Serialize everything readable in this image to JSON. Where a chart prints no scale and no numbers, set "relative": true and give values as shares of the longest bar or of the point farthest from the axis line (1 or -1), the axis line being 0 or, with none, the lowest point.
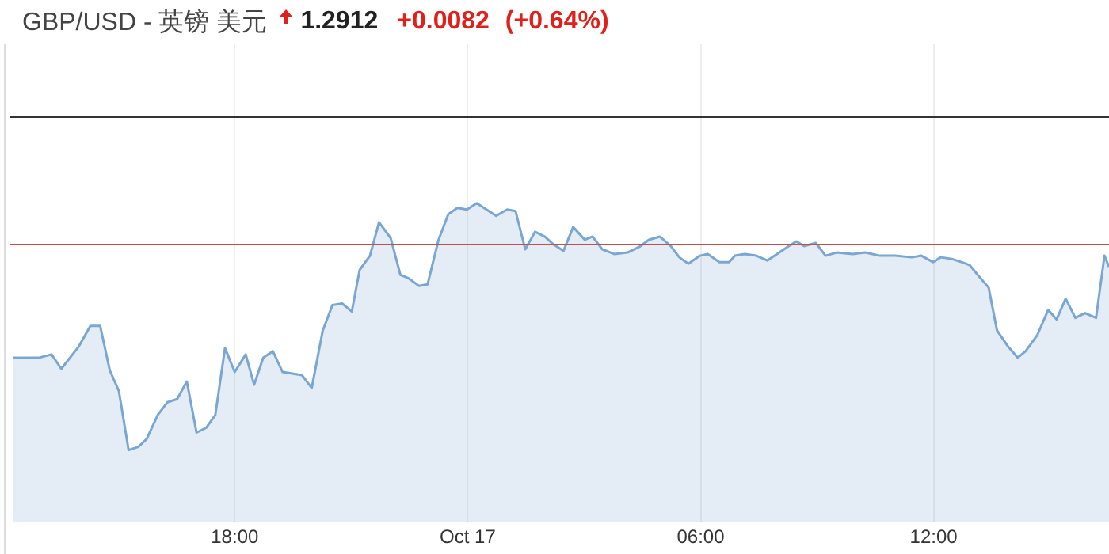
{
  "chart_data": {
    "type": "area",
    "title": "GBP/USD - 英镑 美元",
    "subtitle": "1.2912",
    "annotations": [
      "+0.0082",
      "(+0.64%)"
    ],
    "relative": true,
    "x": [
      "--10-16T12:18",
      "--10-16T12:58",
      "--10-16T13:17",
      "--10-16T13:32",
      "--10-16T13:59",
      "--10-16T14:17",
      "--10-16T14:32",
      "--10-16T14:47",
      "--10-16T15:01",
      "--10-16T15:16",
      "--10-16T15:31",
      "--10-16T15:44",
      "--10-16T16:01",
      "--10-16T16:16",
      "--10-16T16:31",
      "--10-16T16:46",
      "--10-16T17:01",
      "--10-16T17:16",
      "--10-16T17:30",
      "--10-16T17:45",
      "--10-16T18:00",
      "--10-16T18:17",
      "--10-16T18:30",
      "--10-16T18:44",
      "--10-16T18:59",
      "--10-16T19:14",
      "--10-16T19:44",
      "--10-16T19:59",
      "--10-16T20:16",
      "--10-16T20:31",
      "--10-16T20:46",
      "--10-16T21:01",
      "--10-16T21:13",
      "--10-16T21:29",
      "--10-16T21:43",
      "--10-16T22:01",
      "--10-16T22:16",
      "--10-16T22:28",
      "--10-16T22:45",
      "--10-16T22:58",
      "--10-16T23:15",
      "--10-16T23:30",
      "--10-16T23:44",
      "--10-16T23:59",
      "--10-17T00:14",
      "--10-17T00:29",
      "--10-17T00:44",
      "--10-17T01:01",
      "--10-17T01:14",
      "--10-17T01:29",
      "--10-17T01:44",
      "--10-17T01:59",
      "--10-17T02:13",
      "--10-17T02:28",
      "--10-17T02:43",
      "--10-17T03:01",
      "--10-17T03:13",
      "--10-17T03:28",
      "--10-17T03:47",
      "--10-17T04:07",
      "--10-17T04:27",
      "--10-17T04:40",
      "--10-17T04:57",
      "--10-17T05:14",
      "--10-17T05:27",
      "--10-17T05:41",
      "--10-17T05:59",
      "--10-17T06:11",
      "--10-17T06:29",
      "--10-17T06:44",
      "--10-17T06:53",
      "--10-17T07:08",
      "--10-17T07:26",
      "--10-17T07:43",
      "--10-17T07:58",
      "--10-17T08:16",
      "--10-17T08:28",
      "--10-17T08:40",
      "--10-17T08:58",
      "--10-17T09:13",
      "--10-17T09:30",
      "--10-17T09:55",
      "--10-17T10:14",
      "--10-17T10:37",
      "--10-17T11:01",
      "--10-17T11:26",
      "--10-17T11:41",
      "--10-17T11:59",
      "--10-17T12:11",
      "--10-17T12:28",
      "--10-17T12:43",
      "--10-17T12:56",
      "--10-17T13:08",
      "--10-17T13:25",
      "--10-17T13:38",
      "--10-17T13:55",
      "--10-17T14:10",
      "--10-17T14:22",
      "--10-17T14:40",
      "--10-17T14:57",
      "--10-17T15:10",
      "--10-17T15:24",
      "--10-17T15:39",
      "--10-17T15:54",
      "--10-17T16:11",
      "--10-17T16:24",
      "--10-17T16:31"
    ],
    "series": [
      {
        "color": "#7aa6d2",
        "values": [
          0.515,
          0.515,
          0.525,
          0.48,
          0.55,
          0.615,
          0.615,
          0.475,
          0.41,
          0.225,
          0.235,
          0.26,
          0.335,
          0.375,
          0.385,
          0.44,
          0.28,
          0.295,
          0.335,
          0.545,
          0.47,
          0.525,
          0.43,
          0.515,
          0.535,
          0.47,
          0.46,
          0.42,
          0.6,
          0.68,
          0.685,
          0.66,
          0.79,
          0.835,
          0.94,
          0.89,
          0.775,
          0.765,
          0.74,
          0.745,
          0.885,
          0.965,
          0.985,
          0.98,
          1,
          0.98,
          0.96,
          0.98,
          0.975,
          0.855,
          0.91,
          0.895,
          0.87,
          0.85,
          0.925,
          0.885,
          0.895,
          0.855,
          0.84,
          0.845,
          0.865,
          0.885,
          0.895,
          0.865,
          0.83,
          0.81,
          0.835,
          0.84,
          0.815,
          0.815,
          0.835,
          0.84,
          0.835,
          0.82,
          0.84,
          0.865,
          0.88,
          0.865,
          0.875,
          0.835,
          0.845,
          0.84,
          0.845,
          0.835,
          0.835,
          0.83,
          0.835,
          0.815,
          0.83,
          0.825,
          0.815,
          0.805,
          0.775,
          0.735,
          0.6,
          0.55,
          0.515,
          0.535,
          0.585,
          0.665,
          0.635,
          0.7,
          0.64,
          0.655,
          0.64,
          0.835,
          0.8
        ]
      }
    ],
    "xlim": [
      "--10-16T12:12",
      "--10-17T16:31"
    ],
    "xticks": [
      {
        "value": "--10-16T18:00",
        "label": "18:00"
      },
      {
        "value": "--10-17T00:00",
        "label": "Oct 17"
      },
      {
        "value": "--10-17T06:00",
        "label": "06:00"
      },
      {
        "value": "--10-17T12:00",
        "label": "12:00"
      }
    ],
    "ref_lines": [
      {
        "axis": "y",
        "value": 1.27,
        "color": "#333333"
      },
      {
        "axis": "y",
        "value": 0.87,
        "color": "#c0504d"
      }
    ],
    "grid": "x",
    "legend": false,
    "marker": "none",
    "line_style": "solid"
  }
}
